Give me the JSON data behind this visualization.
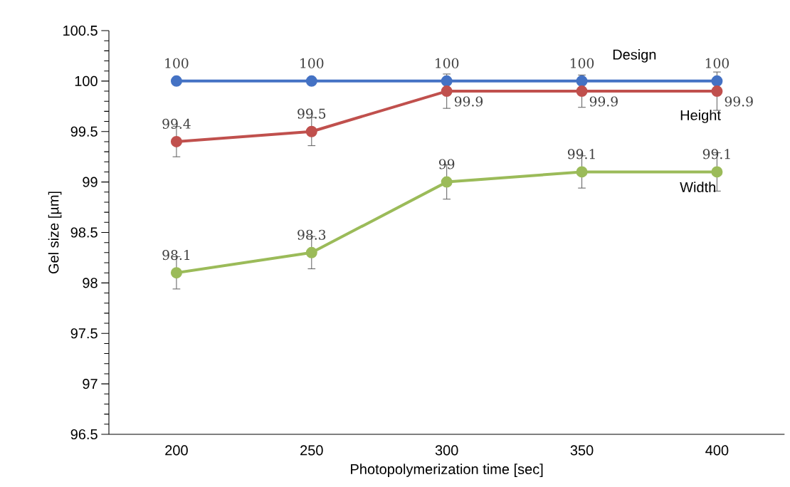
{
  "chart_data": {
    "type": "line",
    "xlabel": "Photopolymerization time [sec]",
    "ylabel": "Gel size [µm]",
    "categories": [
      "200",
      "250",
      "300",
      "350",
      "400"
    ],
    "series": [
      {
        "name": "Design",
        "color": "#4472c4",
        "values": [
          100,
          100,
          100,
          100,
          100
        ]
      },
      {
        "name": "Height",
        "color": "#c0504d",
        "values": [
          99.4,
          99.5,
          99.9,
          99.9,
          99.9
        ],
        "errors": [
          0.15,
          0.14,
          0.17,
          0.16,
          0.19
        ]
      },
      {
        "name": "Width",
        "color": "#9bbb59",
        "values": [
          98.1,
          98.3,
          99,
          99.1,
          99.1
        ],
        "errors": [
          0.16,
          0.16,
          0.17,
          0.16,
          0.19
        ]
      }
    ],
    "ylim": [
      96.5,
      100.5
    ],
    "yticks": [
      96.5,
      97,
      97.5,
      98,
      98.5,
      99,
      99.5,
      100,
      100.5
    ],
    "data_labels": true,
    "grid": false,
    "marker": "circle",
    "line_style": "solid"
  }
}
